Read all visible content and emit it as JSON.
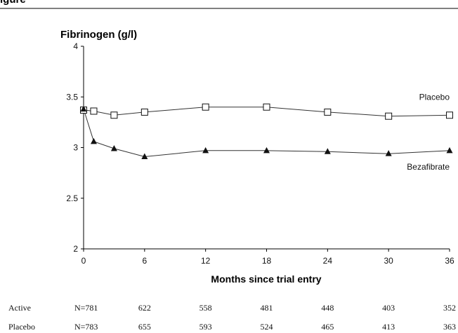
{
  "figure_label": "igure",
  "chart_data": {
    "type": "line",
    "title": "",
    "ylabel": "Fibrinogen (g/l)",
    "xlabel": "Months since trial entry",
    "x_ticks": [
      0,
      6,
      12,
      18,
      24,
      30,
      36
    ],
    "y_ticks": [
      "2",
      "2.5",
      "3",
      "3.5",
      "4"
    ],
    "xlim": [
      0,
      36
    ],
    "ylim": [
      2,
      4
    ],
    "grid": false,
    "series": [
      {
        "name": "Placebo",
        "marker": "open-square",
        "x": [
          0,
          1,
          3,
          6,
          12,
          18,
          24,
          30,
          36
        ],
        "y": [
          3.37,
          3.36,
          3.32,
          3.35,
          3.4,
          3.4,
          3.35,
          3.31,
          3.32
        ]
      },
      {
        "name": "Bezafibrate",
        "marker": "filled-triangle",
        "x": [
          0,
          1,
          3,
          6,
          12,
          18,
          24,
          30,
          36
        ],
        "y": [
          3.38,
          3.06,
          2.99,
          2.91,
          2.97,
          2.97,
          2.96,
          2.94,
          2.97
        ]
      }
    ],
    "n_table": [
      {
        "group": "Active",
        "values": [
          "N=781",
          "622",
          "558",
          "481",
          "448",
          "403",
          "352"
        ]
      },
      {
        "group": "Placebo",
        "values": [
          "N=783",
          "655",
          "593",
          "524",
          "465",
          "413",
          "363"
        ]
      }
    ],
    "colors": {
      "line": "#333333",
      "marker": "#111111",
      "axis": "#000000"
    }
  }
}
